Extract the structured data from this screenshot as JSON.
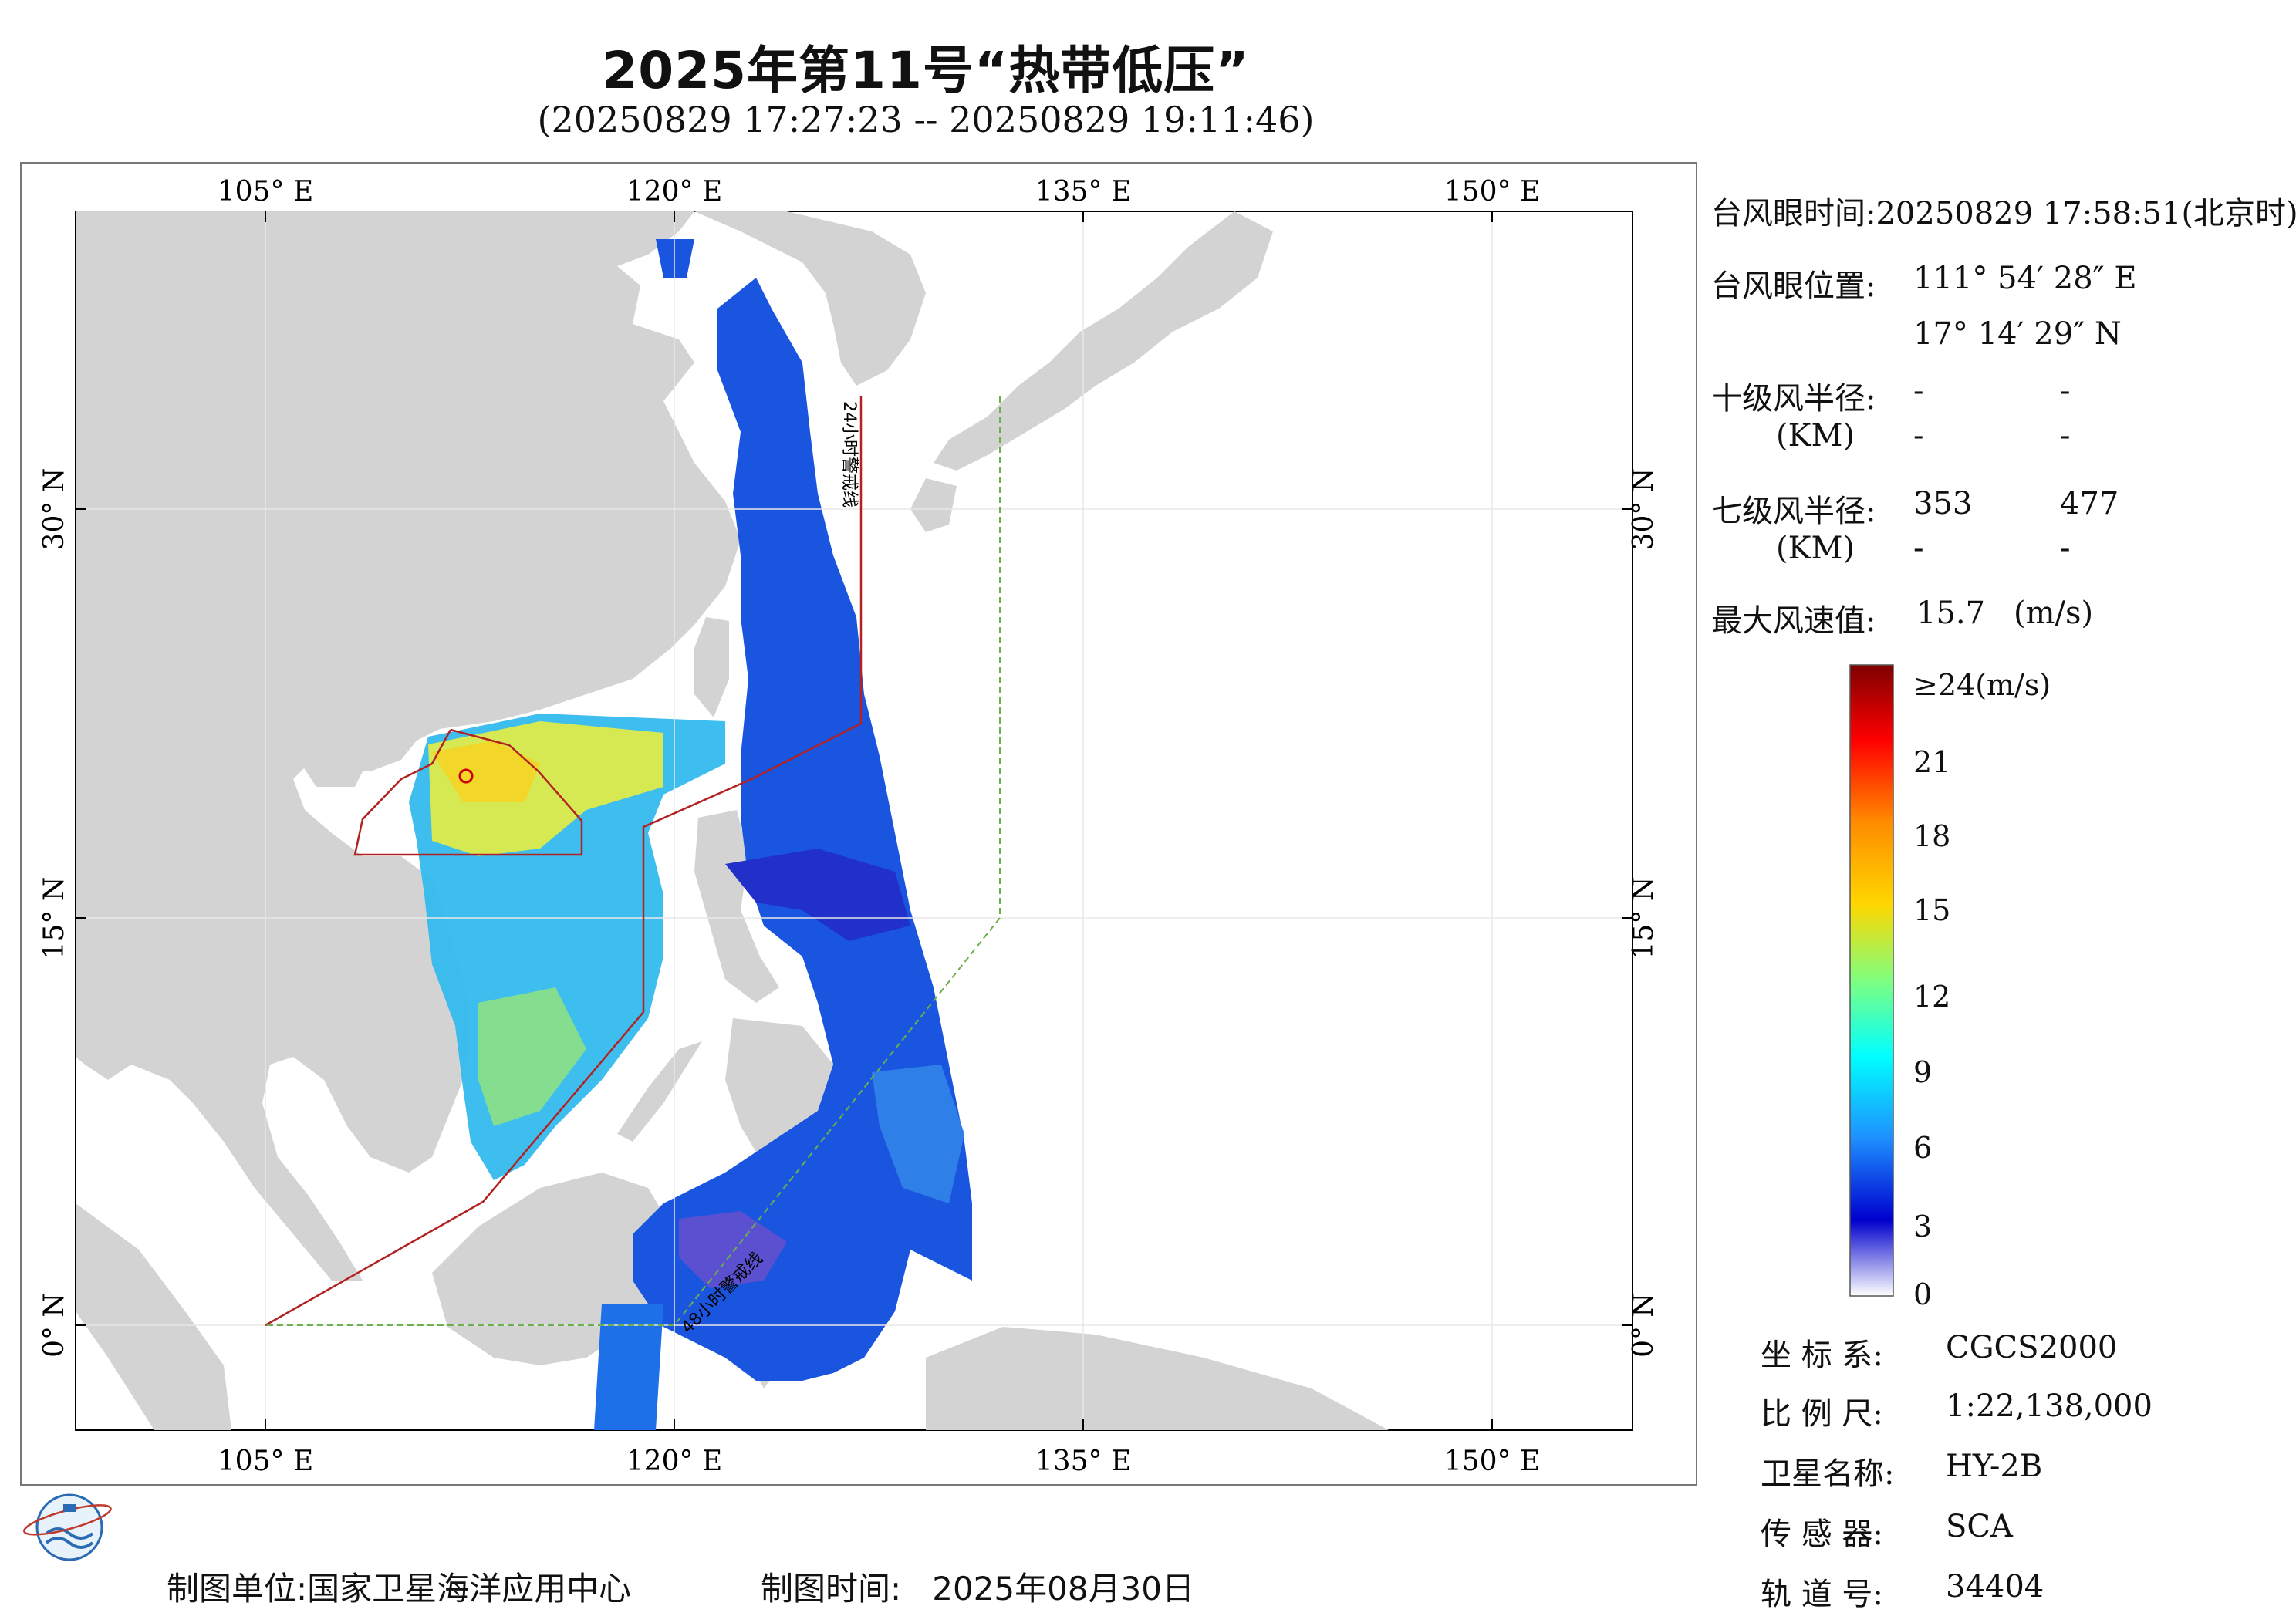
{
  "header": {
    "title": "2025年第11号“热带低压”",
    "subtitle": "(20250829 17:27:23 -- 20250829 19:11:46)"
  },
  "map": {
    "lon_labels": [
      "105° E",
      "120° E",
      "135° E",
      "150° E"
    ],
    "lat_labels": [
      "30° N",
      "15° N",
      "0° N"
    ],
    "line_label_24h": "24小时警戒线",
    "line_label_48h": "48小时警戒线",
    "colors": {
      "land": "#d3d3d3",
      "sea": "#ffffff",
      "warning_line": "#b22222",
      "boundary_line": "#6ab04c"
    }
  },
  "info": {
    "eye_time_label": "台风眼时间:",
    "eye_time_value": "20250829 17:58:51(北京时)",
    "eye_pos_label": "台风眼位置:",
    "eye_lon": "111° 54′ 28″ E",
    "eye_lat": "17° 14′ 29″ N",
    "r10_label": "十级风半径:",
    "r10_unit": "(KM)",
    "r10_values": [
      "-",
      "-",
      "-",
      "-"
    ],
    "r7_label": "七级风半径:",
    "r7_unit": "(KM)",
    "r7_values": [
      "353",
      "477",
      "-",
      "-"
    ],
    "max_wind_label": "最大风速值:",
    "max_wind_value": "15.7",
    "max_wind_unit": "(m/s)"
  },
  "colorbar": {
    "labels": [
      "≥24(m/s)",
      "21",
      "18",
      "15",
      "12",
      "9",
      "6",
      "3",
      "0"
    ],
    "colors": [
      "#7f0000",
      "#ff0000",
      "#ff8c00",
      "#ffd700",
      "#7fff7f",
      "#00ffff",
      "#1e90ff",
      "#0000cd",
      "#ffffff"
    ]
  },
  "metadata": {
    "crs_label": "坐 标 系:",
    "crs_value": "CGCS2000",
    "scale_label": "比 例 尺:",
    "scale_value": "1:22,138,000",
    "sat_label": "卫星名称:",
    "sat_value": "HY-2B",
    "sensor_label": "传 感 器:",
    "sensor_value": "SCA",
    "orbit_label": "轨 道 号:",
    "orbit_value": "34404"
  },
  "footer": {
    "org_label": "制图单位:",
    "org_value": "国家卫星海洋应用中心",
    "time_label": "制图时间:",
    "time_value": "2025年08月30日"
  }
}
